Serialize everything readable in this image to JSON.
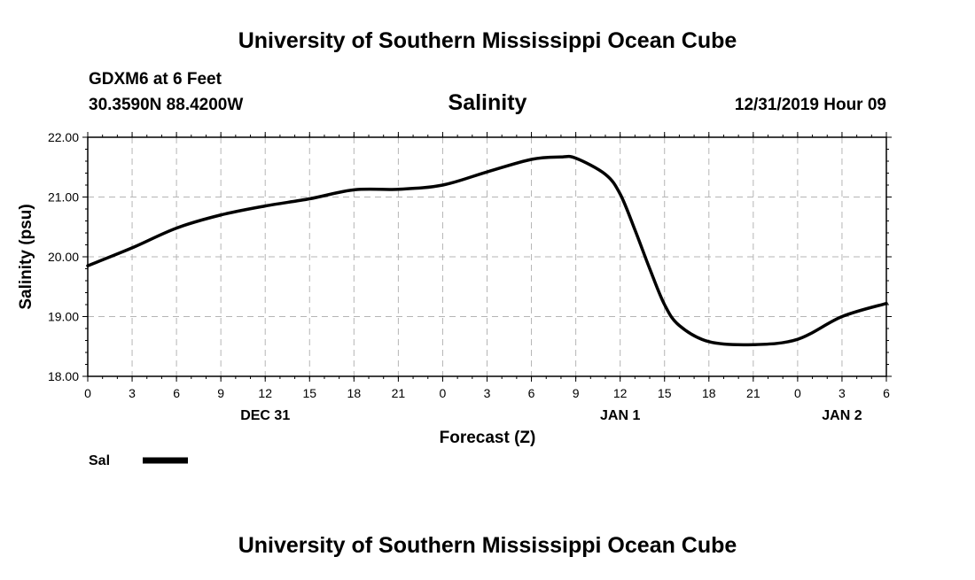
{
  "header": {
    "title": "University of Southern Mississippi Ocean Cube",
    "station": "GDXM6 at 6 Feet",
    "coords": "30.3590N 88.4200W",
    "variable": "Salinity",
    "timestamp": "12/31/2019 Hour 09"
  },
  "footer": {
    "title": "University of Southern Mississippi Ocean Cube"
  },
  "chart_data": {
    "type": "line",
    "title": "Salinity",
    "xlabel": "Forecast (Z)",
    "ylabel": "Salinity (psu)",
    "ylim": [
      18.0,
      22.0
    ],
    "xlim": [
      0,
      54
    ],
    "y_ticks": [
      "18.00",
      "19.00",
      "20.00",
      "21.00",
      "22.00"
    ],
    "y_tick_values": [
      18,
      19,
      20,
      21,
      22
    ],
    "x_tick_labels": [
      "0",
      "3",
      "6",
      "9",
      "12",
      "15",
      "18",
      "21",
      "0",
      "3",
      "6",
      "9",
      "12",
      "15",
      "18",
      "21",
      "0",
      "3",
      "6"
    ],
    "day_labels": [
      {
        "label": "DEC 31",
        "hour": 12
      },
      {
        "label": "JAN 1",
        "hour": 36
      },
      {
        "label": "JAN 2",
        "hour": 51
      }
    ],
    "grid": true,
    "legend": [
      {
        "name": "Sal",
        "color": "#000000"
      }
    ],
    "series": [
      {
        "name": "Sal",
        "x": [
          0,
          3,
          6,
          9,
          12,
          15,
          18,
          21,
          24,
          27,
          30,
          32,
          33,
          35,
          36,
          37,
          38,
          39,
          40,
          42,
          45,
          48,
          51,
          54
        ],
        "values": [
          19.85,
          20.15,
          20.48,
          20.7,
          20.85,
          20.97,
          21.12,
          21.13,
          21.2,
          21.42,
          21.63,
          21.67,
          21.65,
          21.38,
          21.05,
          20.45,
          19.8,
          19.2,
          18.85,
          18.58,
          18.53,
          18.62,
          19.0,
          19.22
        ]
      }
    ]
  }
}
